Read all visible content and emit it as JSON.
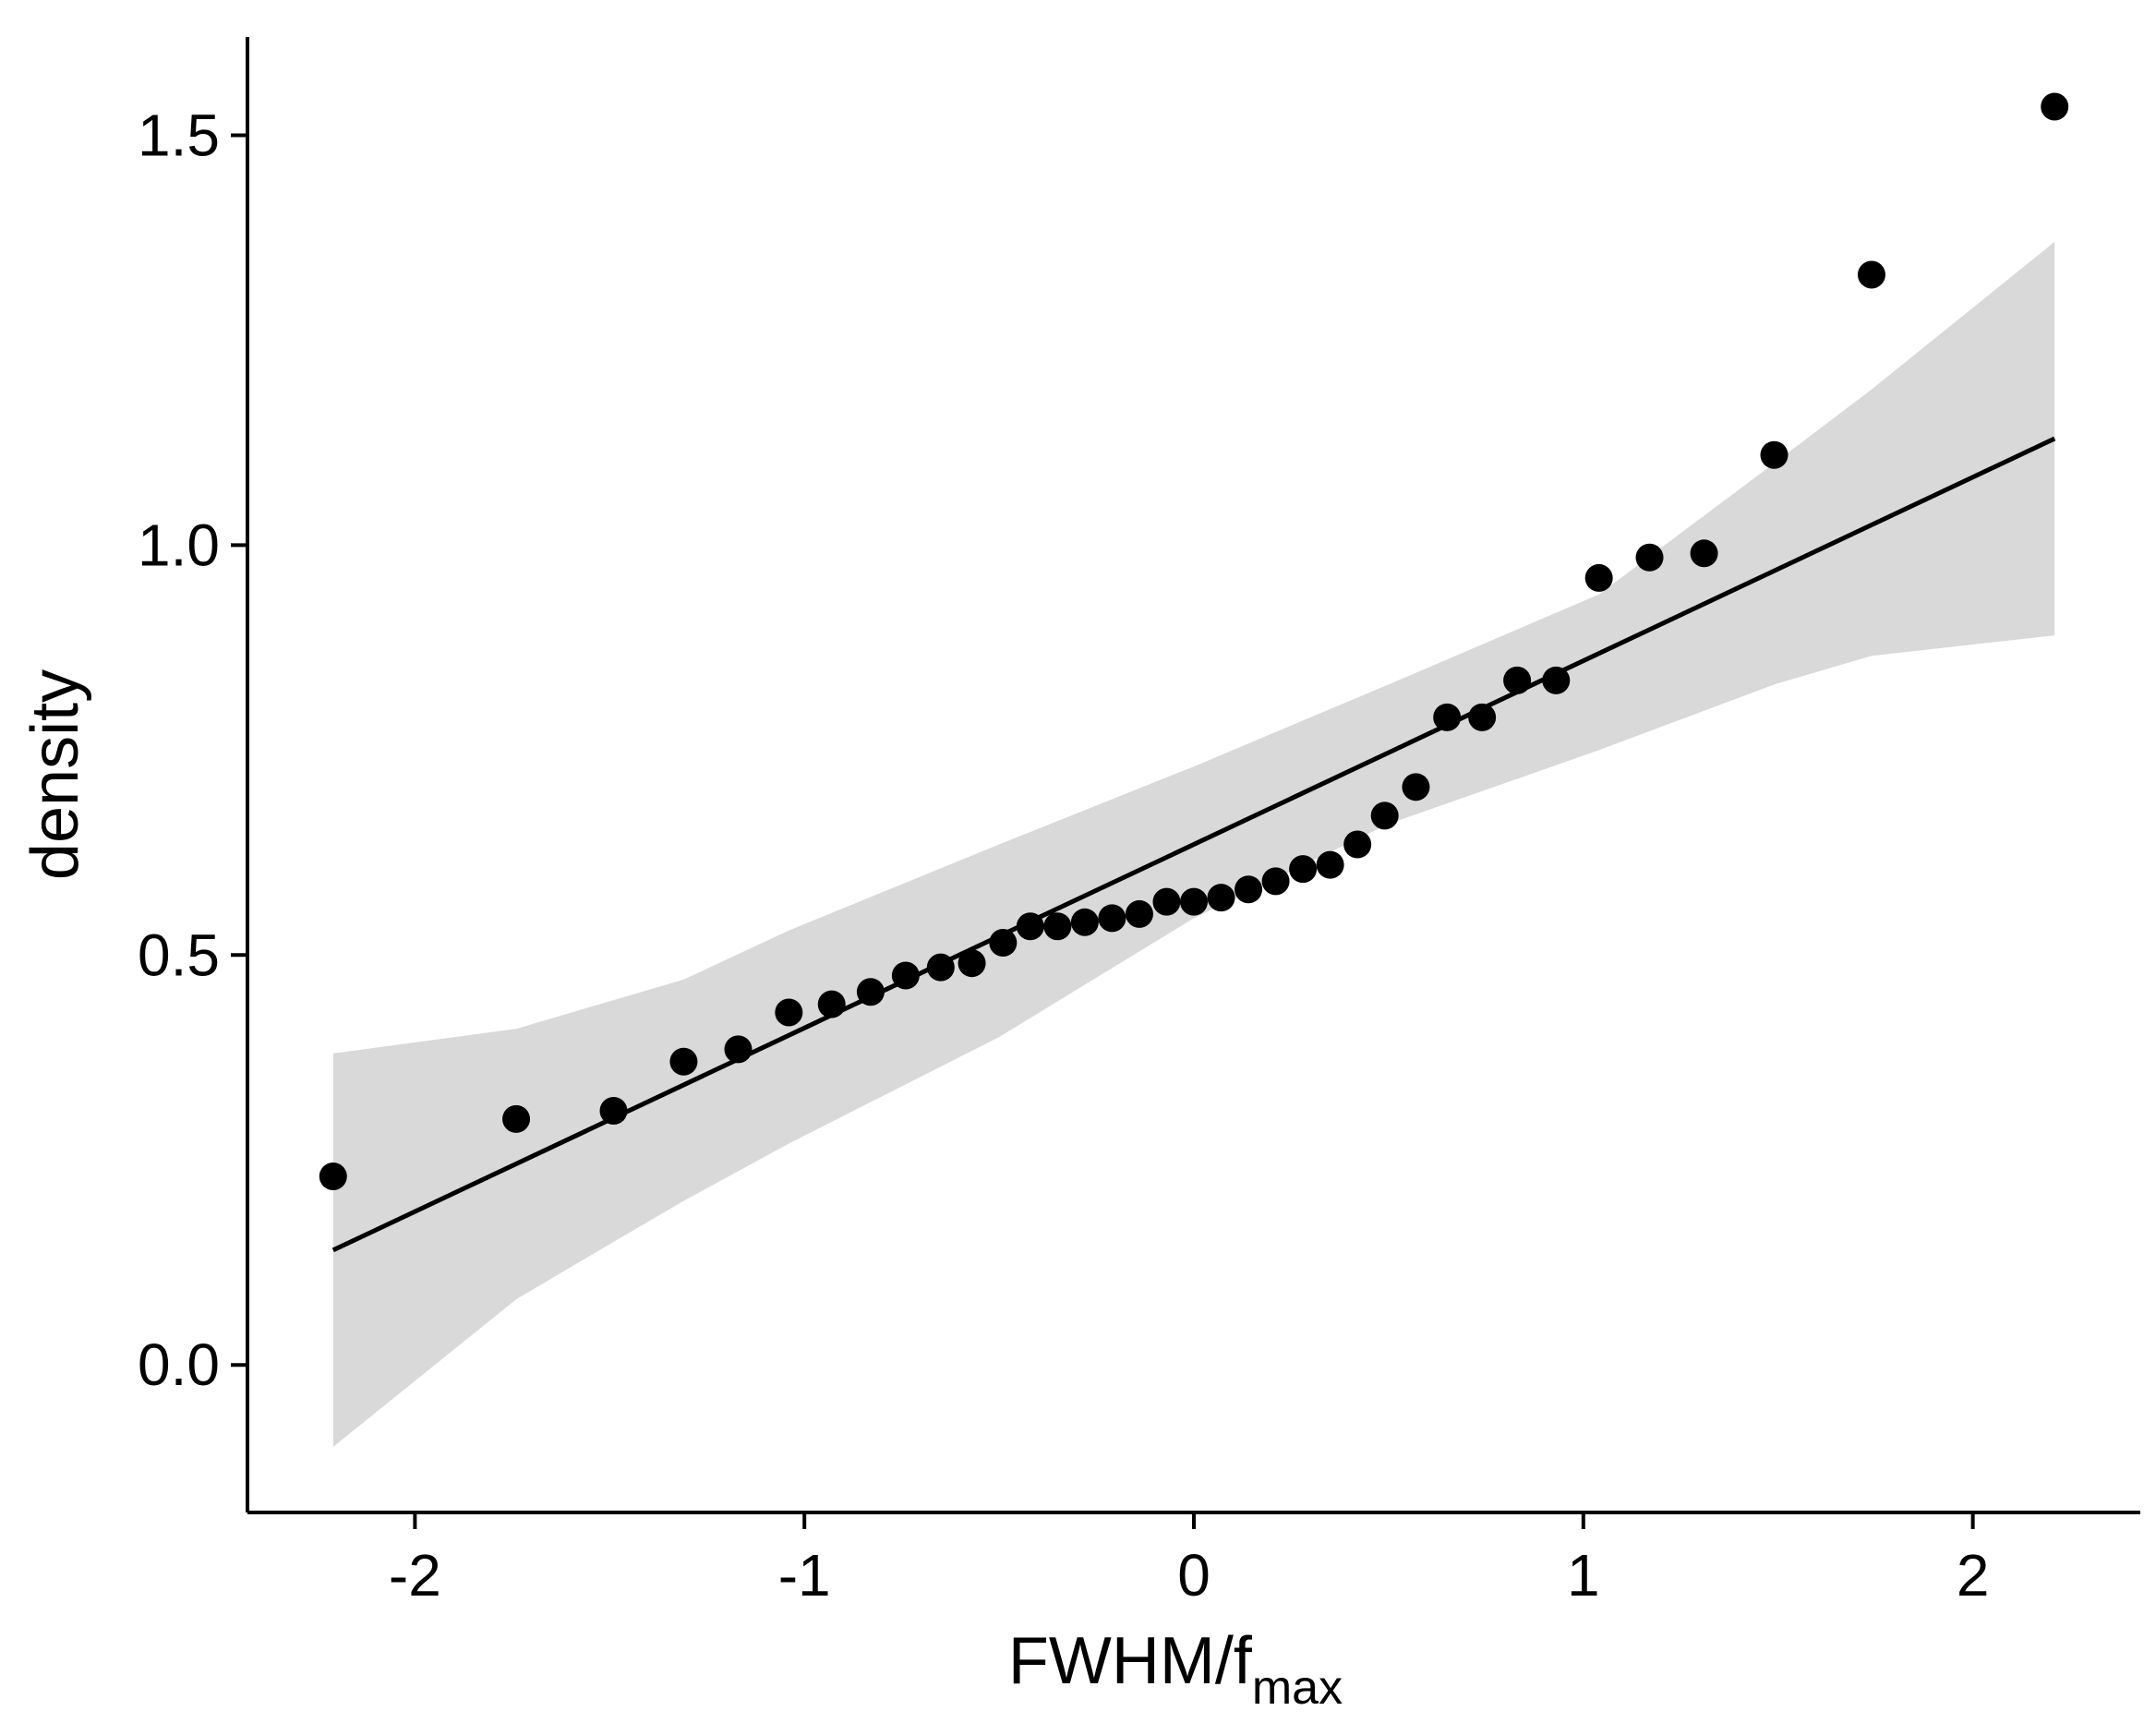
{
  "chart_data": {
    "type": "scatter",
    "xlabel": "FWHM/f",
    "xlabel_subscript": "max",
    "ylabel": "density",
    "xlim": [
      -2.43,
      2.43
    ],
    "ylim": [
      -0.18,
      1.62
    ],
    "x_ticks": [
      {
        "value": -2,
        "label": "-2"
      },
      {
        "value": -1,
        "label": "-1"
      },
      {
        "value": 0,
        "label": "0"
      },
      {
        "value": 1,
        "label": "1"
      },
      {
        "value": 2,
        "label": "2"
      }
    ],
    "y_ticks": [
      {
        "value": 0.0,
        "label": "0.0"
      },
      {
        "value": 0.5,
        "label": "0.5"
      },
      {
        "value": 1.0,
        "label": "1.0"
      },
      {
        "value": 1.5,
        "label": "1.5"
      }
    ],
    "grid": false,
    "points": [
      {
        "x": -2.21,
        "y": 0.23
      },
      {
        "x": -1.74,
        "y": 0.3
      },
      {
        "x": -1.49,
        "y": 0.31
      },
      {
        "x": -1.31,
        "y": 0.37
      },
      {
        "x": -1.17,
        "y": 0.385
      },
      {
        "x": -1.04,
        "y": 0.43
      },
      {
        "x": -0.93,
        "y": 0.44
      },
      {
        "x": -0.83,
        "y": 0.455
      },
      {
        "x": -0.74,
        "y": 0.475
      },
      {
        "x": -0.65,
        "y": 0.485
      },
      {
        "x": -0.57,
        "y": 0.49
      },
      {
        "x": -0.49,
        "y": 0.515
      },
      {
        "x": -0.42,
        "y": 0.535
      },
      {
        "x": -0.35,
        "y": 0.535
      },
      {
        "x": -0.28,
        "y": 0.54
      },
      {
        "x": -0.21,
        "y": 0.545
      },
      {
        "x": -0.14,
        "y": 0.55
      },
      {
        "x": -0.07,
        "y": 0.565
      },
      {
        "x": 0.0,
        "y": 0.565
      },
      {
        "x": 0.07,
        "y": 0.57
      },
      {
        "x": 0.14,
        "y": 0.58
      },
      {
        "x": 0.21,
        "y": 0.59
      },
      {
        "x": 0.28,
        "y": 0.605
      },
      {
        "x": 0.35,
        "y": 0.61
      },
      {
        "x": 0.42,
        "y": 0.635
      },
      {
        "x": 0.49,
        "y": 0.67
      },
      {
        "x": 0.57,
        "y": 0.705
      },
      {
        "x": 0.65,
        "y": 0.79
      },
      {
        "x": 0.74,
        "y": 0.79
      },
      {
        "x": 0.83,
        "y": 0.835
      },
      {
        "x": 0.93,
        "y": 0.835
      },
      {
        "x": 1.04,
        "y": 0.96
      },
      {
        "x": 1.17,
        "y": 0.985
      },
      {
        "x": 1.31,
        "y": 0.99
      },
      {
        "x": 1.49,
        "y": 1.11
      },
      {
        "x": 1.74,
        "y": 1.33
      },
      {
        "x": 2.21,
        "y": 1.535
      }
    ],
    "reference_line": {
      "x": [
        -2.21,
        2.21
      ],
      "y": [
        0.14,
        1.13
      ]
    },
    "confidence_band": {
      "x": [
        -2.21,
        -1.74,
        -1.49,
        -1.31,
        -1.04,
        -0.5,
        0.0,
        0.5,
        1.04,
        1.49,
        1.74,
        2.21
      ],
      "lower": [
        -0.1,
        0.08,
        0.15,
        0.2,
        0.27,
        0.4,
        0.545,
        0.66,
        0.75,
        0.83,
        0.865,
        0.89
      ],
      "upper": [
        0.38,
        0.41,
        0.445,
        0.47,
        0.53,
        0.635,
        0.73,
        0.83,
        0.94,
        1.1,
        1.19,
        1.37
      ]
    },
    "colors": {
      "points": "#000000",
      "line": "#000000",
      "band": "#d9d9d9",
      "axis": "#000000"
    }
  }
}
